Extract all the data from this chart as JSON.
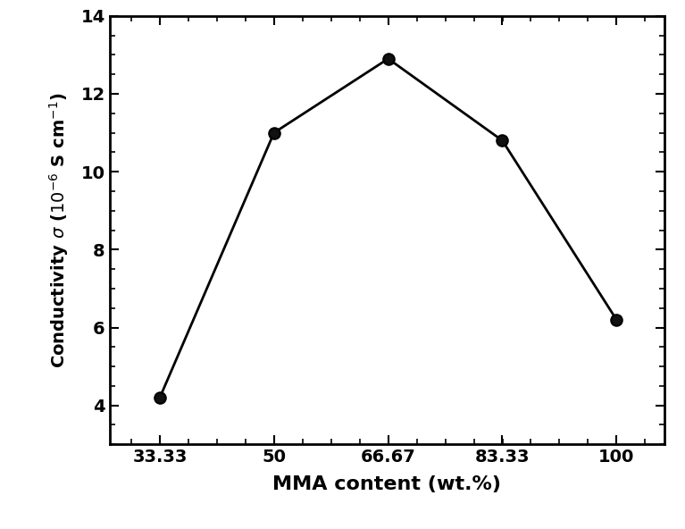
{
  "x": [
    33.33,
    50,
    66.67,
    83.33,
    100
  ],
  "y": [
    4.2,
    11.0,
    12.9,
    10.8,
    6.2
  ],
  "x_tick_labels": [
    "33.33",
    "50",
    "66.67",
    "83.33",
    "100"
  ],
  "x_tick_positions": [
    33.33,
    50,
    66.67,
    83.33,
    100
  ],
  "xlim": [
    26,
    107
  ],
  "ylim": [
    3.0,
    14.0
  ],
  "yticks": [
    4,
    6,
    8,
    10,
    12,
    14
  ],
  "xlabel": "MMA content (wt.%)",
  "line_color": "#000000",
  "marker": "o",
  "marker_size": 9,
  "marker_facecolor": "#111111",
  "line_width": 2.0,
  "xlabel_fontsize": 16,
  "ylabel_fontsize": 14,
  "tick_fontsize": 14,
  "background_color": "#ffffff",
  "figure_width": 7.67,
  "figure_height": 5.92,
  "dpi": 100
}
